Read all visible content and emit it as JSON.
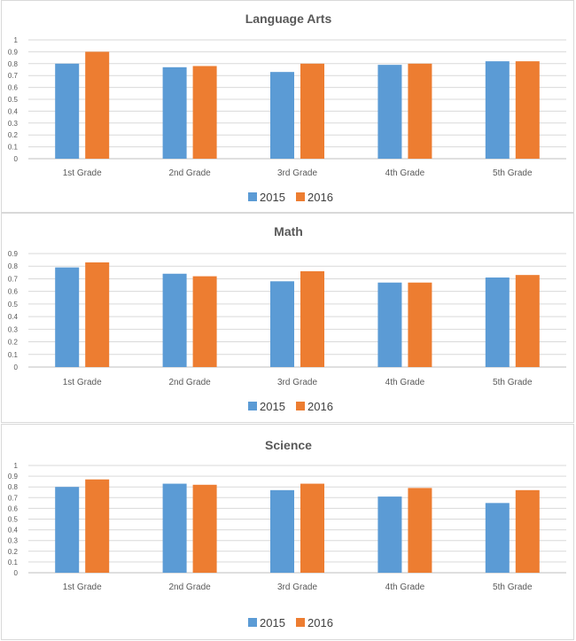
{
  "chart_data": [
    {
      "type": "bar",
      "title": "Language Arts",
      "categories": [
        "1st Grade",
        "2nd Grade",
        "3rd Grade",
        "4th Grade",
        "5th Grade"
      ],
      "series": [
        {
          "name": "2015",
          "values": [
            0.8,
            0.77,
            0.73,
            0.79,
            0.82
          ]
        },
        {
          "name": "2016",
          "values": [
            0.9,
            0.78,
            0.8,
            0.8,
            0.82
          ]
        }
      ],
      "yticks": [
        "0",
        "0.1",
        "0.2",
        "0.3",
        "0.4",
        "0.5",
        "0.6",
        "0.7",
        "0.8",
        "0.9",
        "1"
      ],
      "ylim": [
        0,
        1
      ],
      "grid": true,
      "legend": "bottom"
    },
    {
      "type": "bar",
      "title": "Math",
      "categories": [
        "1st Grade",
        "2nd Grade",
        "3rd Grade",
        "4th Grade",
        "5th Grade"
      ],
      "series": [
        {
          "name": "2015",
          "values": [
            0.79,
            0.74,
            0.68,
            0.67,
            0.71
          ]
        },
        {
          "name": "2016",
          "values": [
            0.83,
            0.72,
            0.76,
            0.67,
            0.73
          ]
        }
      ],
      "yticks": [
        "0",
        "0.1",
        "0.2",
        "0.3",
        "0.4",
        "0.5",
        "0.6",
        "0.7",
        "0.8",
        "0.9"
      ],
      "ylim": [
        0,
        0.9
      ],
      "grid": true,
      "legend": "bottom"
    },
    {
      "type": "bar",
      "title": "Science",
      "categories": [
        "1st Grade",
        "2nd Grade",
        "3rd Grade",
        "4th Grade",
        "5th Grade"
      ],
      "series": [
        {
          "name": "2015",
          "values": [
            0.8,
            0.83,
            0.77,
            0.71,
            0.65
          ]
        },
        {
          "name": "2016",
          "values": [
            0.87,
            0.82,
            0.83,
            0.79,
            0.77
          ]
        }
      ],
      "yticks": [
        "0",
        "0.1",
        "0.2",
        "0.3",
        "0.4",
        "0.5",
        "0.6",
        "0.7",
        "0.8",
        "0.9",
        "1"
      ],
      "ylim": [
        0,
        1
      ],
      "grid": true,
      "legend": "bottom"
    }
  ],
  "colors": {
    "2015": "#5b9bd5",
    "2016": "#ed7d31",
    "grid": "#d9d9d9",
    "text": "#595959"
  }
}
